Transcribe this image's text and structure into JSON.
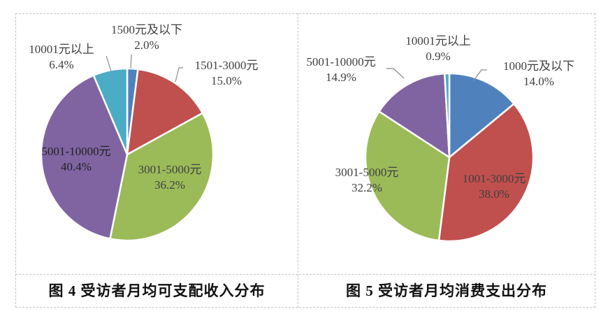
{
  "chart_data": [
    {
      "type": "pie",
      "title": "图 4  受访者月均可支配收入分布",
      "categories": [
        "1500元及以下",
        "1501-3000元",
        "3001-5000元",
        "5001-10000元",
        "10001元以上"
      ],
      "values": [
        2.0,
        15.0,
        36.2,
        40.4,
        6.4
      ],
      "value_labels": [
        "2.0%",
        "15.0%",
        "36.2%",
        "40.4%",
        "6.4%"
      ],
      "colors": [
        "#4F81BD",
        "#C0504D",
        "#9BBB59",
        "#8064A2",
        "#4BACC6"
      ],
      "start_angle_deg": 0,
      "direction": "clockwise",
      "legend": "none (data labels with category name and percentage)"
    },
    {
      "type": "pie",
      "title": "图 5  受访者月均消费支出分布",
      "categories": [
        "1000元及以下",
        "1001-3000元",
        "3001-5000元",
        "5001-10000元",
        "10001元以上"
      ],
      "values": [
        14.0,
        38.0,
        32.2,
        14.9,
        0.9
      ],
      "value_labels": [
        "14.0%",
        "38.0%",
        "32.2%",
        "14.9%",
        "0.9%"
      ],
      "colors": [
        "#4F81BD",
        "#C0504D",
        "#9BBB59",
        "#8064A2",
        "#4BACC6"
      ],
      "start_angle_deg": 0,
      "direction": "clockwise",
      "legend": "none (data labels with category name and percentage)"
    }
  ],
  "figures": [
    {
      "caption": "图 4  受访者月均可支配收入分布",
      "labels": [
        {
          "name": "1500元及以下",
          "pct": "2.0%"
        },
        {
          "name": "1501-3000元",
          "pct": "15.0%"
        },
        {
          "name": "3001-5000元",
          "pct": "36.2%"
        },
        {
          "name": "5001-10000元",
          "pct": "40.4%"
        },
        {
          "name": "10001元以上",
          "pct": "6.4%"
        }
      ]
    },
    {
      "caption": "图 5  受访者月均消费支出分布",
      "labels": [
        {
          "name": "1000元及以下",
          "pct": "14.0%"
        },
        {
          "name": "1001-3000元",
          "pct": "38.0%"
        },
        {
          "name": "3001-5000元",
          "pct": "32.2%"
        },
        {
          "name": "5001-10000元",
          "pct": "14.9%"
        },
        {
          "name": "10001元以上",
          "pct": "0.9%"
        }
      ]
    }
  ]
}
